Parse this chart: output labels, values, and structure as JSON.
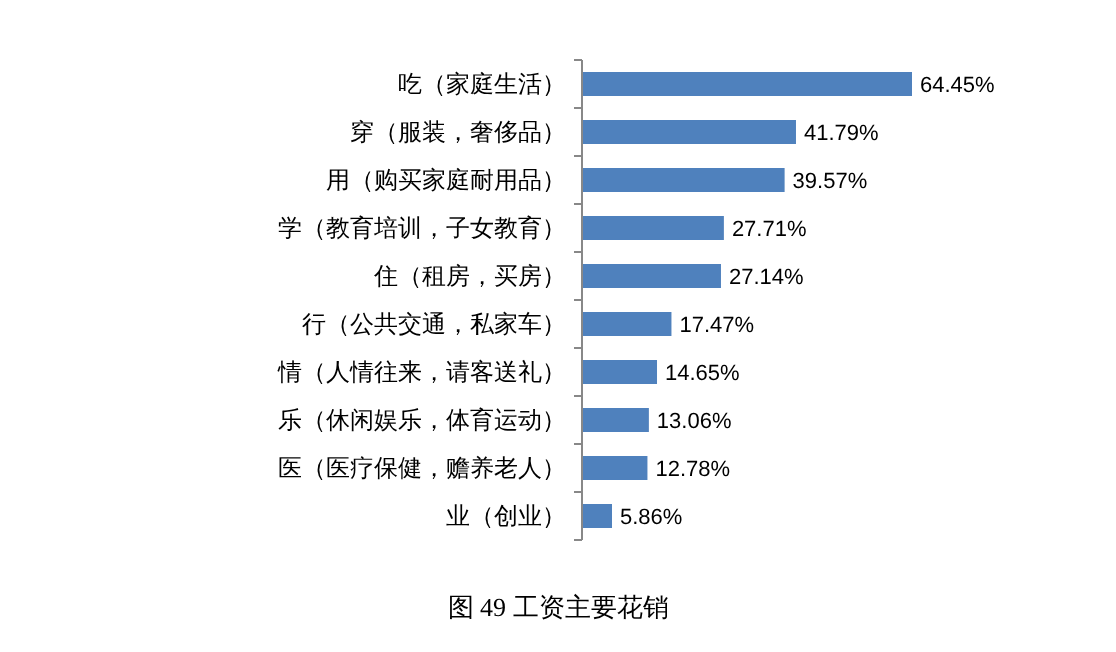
{
  "chart_data": {
    "type": "bar",
    "orientation": "horizontal",
    "title": "图 49 工资主要花销",
    "categories": [
      "吃（家庭生活）",
      "穿（服装，奢侈品）",
      "用（购买家庭耐用品）",
      "学（教育培训，子女教育）",
      "住（租房，买房）",
      "行（公共交通，私家车）",
      "情（人情往来，请客送礼）",
      "乐（休闲娱乐，体育运动）",
      "医（医疗保健，赡养老人）",
      "业（创业）"
    ],
    "values": [
      64.45,
      41.79,
      39.57,
      27.71,
      27.14,
      17.47,
      14.65,
      13.06,
      12.78,
      5.86
    ],
    "value_labels": [
      "64.45%",
      "41.79%",
      "39.57%",
      "27.71%",
      "27.14%",
      "17.47%",
      "14.65%",
      "13.06%",
      "12.78%",
      "5.86%"
    ],
    "color": "#4f81bd"
  }
}
